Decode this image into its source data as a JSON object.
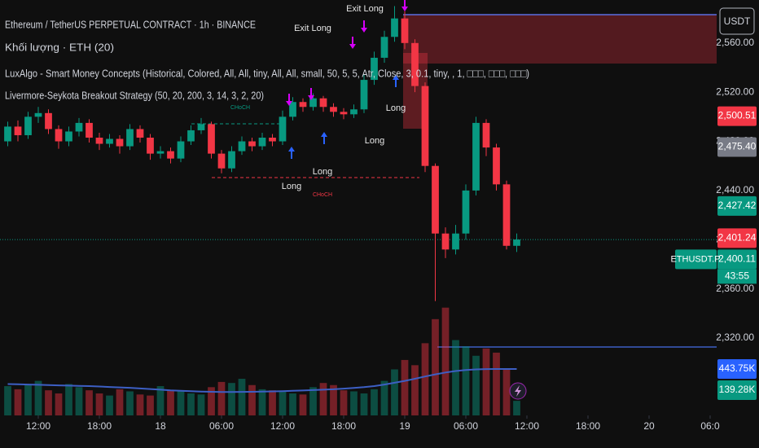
{
  "chart_data": {
    "type": "candlestick",
    "title": "Ethereum / TetherUS PERPETUAL CONTRACT · 1h · BINANCE",
    "legend_lines": [
      "Khối lượng · ETH (20)",
      "LuxAlgo - Smart Money Concepts (Historical, Colored, All, All, tiny, All, All, small, 50, 5, 5, Atr, Close, 3, 0.1, tiny, , 1, □□□, □□□, □□□)",
      "Livermore-Seykota Breakout Strategy (50, 20, 200, 3, 14, 3, 2, 20)"
    ],
    "currency": "USDT",
    "symbol_tag": "ETHUSDT.P",
    "countdown": "43:55",
    "annotations": [
      "Exit Long",
      "Exit Long",
      "Long",
      "Long",
      "Long",
      "Long",
      "CHoCH",
      "CHoCH"
    ],
    "up_color": "#089981",
    "down_color": "#f23645",
    "grid": false,
    "x": [
      -3,
      -2,
      -1,
      0,
      1,
      2,
      3,
      4,
      5,
      6,
      7,
      8,
      9,
      10,
      11,
      12,
      13,
      14,
      15,
      16,
      17,
      18,
      19,
      20,
      21,
      22,
      23,
      24,
      25,
      26,
      27,
      28,
      29,
      30,
      31,
      32,
      33,
      34,
      35,
      36,
      37,
      38,
      39,
      40,
      41,
      42,
      43,
      44,
      45,
      46,
      47
    ],
    "xlim": [
      -3.76,
      66.64
    ],
    "xticks": [
      {
        "value": 0,
        "label": "12:00"
      },
      {
        "value": 6,
        "label": "18:00"
      },
      {
        "value": 12,
        "label": "18"
      },
      {
        "value": 18,
        "label": "06:00"
      },
      {
        "value": 24,
        "label": "12:00"
      },
      {
        "value": 30,
        "label": "18:00"
      },
      {
        "value": 36,
        "label": "19"
      },
      {
        "value": 42,
        "label": "06:00"
      },
      {
        "value": 48,
        "label": "12:00"
      },
      {
        "value": 54,
        "label": "18:00"
      },
      {
        "value": 60,
        "label": "20"
      },
      {
        "value": 66,
        "label": "06:0"
      }
    ],
    "ylim": [
      2257,
      2595
    ],
    "yticks": [
      {
        "value": 2320,
        "label": "2,320.00"
      },
      {
        "value": 2360,
        "label": "2,360.00"
      },
      {
        "value": 2400,
        "label": "2,400.00"
      },
      {
        "value": 2440,
        "label": "2,440.00"
      },
      {
        "value": 2480,
        "label": "2,480.00"
      },
      {
        "value": 2520,
        "label": "2,520.00"
      },
      {
        "value": 2560,
        "label": "2,560.00"
      }
    ],
    "open": [
      2480,
      2492,
      2485,
      2500,
      2503,
      2490,
      2480,
      2488,
      2495,
      2483,
      2478,
      2482,
      2476,
      2490,
      2483,
      2470,
      2472,
      2466,
      2480,
      2489,
      2494,
      2470,
      2458,
      2472,
      2480,
      2476,
      2483,
      2480,
      2500,
      2512,
      2508,
      2515,
      2508,
      2504,
      2502,
      2506,
      2530,
      2548,
      2565,
      2580,
      2560,
      2525,
      2460,
      2405,
      2392,
      2405,
      2440,
      2495,
      2475,
      2445,
      2395
    ],
    "high": [
      2496,
      2497,
      2504,
      2508,
      2506,
      2493,
      2492,
      2499,
      2498,
      2487,
      2486,
      2485,
      2494,
      2493,
      2486,
      2476,
      2475,
      2484,
      2493,
      2499,
      2496,
      2473,
      2476,
      2484,
      2483,
      2487,
      2486,
      2505,
      2516,
      2515,
      2519,
      2517,
      2511,
      2507,
      2510,
      2534,
      2553,
      2570,
      2590,
      2586,
      2563,
      2528,
      2462,
      2410,
      2412,
      2445,
      2500,
      2498,
      2478,
      2448,
      2405
    ],
    "low": [
      2476,
      2480,
      2482,
      2495,
      2486,
      2474,
      2476,
      2484,
      2479,
      2473,
      2475,
      2470,
      2473,
      2479,
      2465,
      2466,
      2462,
      2463,
      2477,
      2486,
      2466,
      2454,
      2455,
      2469,
      2472,
      2473,
      2476,
      2477,
      2497,
      2504,
      2505,
      2504,
      2500,
      2498,
      2499,
      2503,
      2526,
      2544,
      2561,
      2555,
      2520,
      2455,
      2350,
      2385,
      2388,
      2400,
      2436,
      2468,
      2440,
      2392,
      2390
    ],
    "close": [
      2492,
      2485,
      2500,
      2503,
      2490,
      2480,
      2488,
      2495,
      2483,
      2478,
      2482,
      2476,
      2490,
      2483,
      2470,
      2472,
      2466,
      2480,
      2489,
      2494,
      2470,
      2458,
      2472,
      2480,
      2476,
      2483,
      2480,
      2500,
      2512,
      2508,
      2515,
      2508,
      2504,
      2502,
      2506,
      2530,
      2548,
      2565,
      2580,
      2560,
      2525,
      2460,
      2405,
      2392,
      2405,
      2440,
      2495,
      2475,
      2445,
      2395,
      2400.11
    ],
    "volume_lim": [
      0,
      3970
    ],
    "volume": [
      280,
      250,
      290,
      330,
      240,
      210,
      300,
      270,
      240,
      210,
      190,
      250,
      230,
      200,
      190,
      280,
      240,
      230,
      210,
      200,
      270,
      320,
      310,
      350,
      290,
      250,
      240,
      230,
      210,
      200,
      270,
      310,
      290,
      240,
      230,
      210,
      250,
      330,
      440,
      530,
      480,
      690,
      920,
      1030,
      720,
      660,
      570,
      640,
      600,
      440,
      139.28
    ],
    "volume_ma_color": "#3d5fc4",
    "volume_ma": [
      300,
      298,
      295,
      293,
      290,
      287,
      285,
      282,
      280,
      276,
      272,
      268,
      264,
      258,
      252,
      246,
      240,
      236,
      232,
      228,
      226,
      224,
      224,
      225,
      226,
      228,
      230,
      232,
      235,
      238,
      242,
      246,
      250,
      256,
      262,
      270,
      280,
      295,
      312,
      330,
      350,
      372,
      392,
      410,
      424,
      434,
      440,
      443,
      444,
      444,
      443.75
    ],
    "price_tags": [
      {
        "value": 2500.51,
        "label": "2,500.51",
        "color": "#f23645"
      },
      {
        "value": 2475.4,
        "label": "2,475.40",
        "color": "#787b86"
      },
      {
        "value": 2427.42,
        "label": "2,427.42",
        "color": "#089981"
      },
      {
        "value": 2401.24,
        "label": "2,401.24",
        "color": "#f23645"
      },
      {
        "value": 2400.11,
        "label": "2,400.11",
        "color": "#089981"
      }
    ],
    "volume_tags": [
      {
        "value": 443.75,
        "label": "443.75K",
        "color": "#2962ff"
      },
      {
        "value": 139.28,
        "label": "139.28K",
        "color": "#089981"
      }
    ]
  }
}
